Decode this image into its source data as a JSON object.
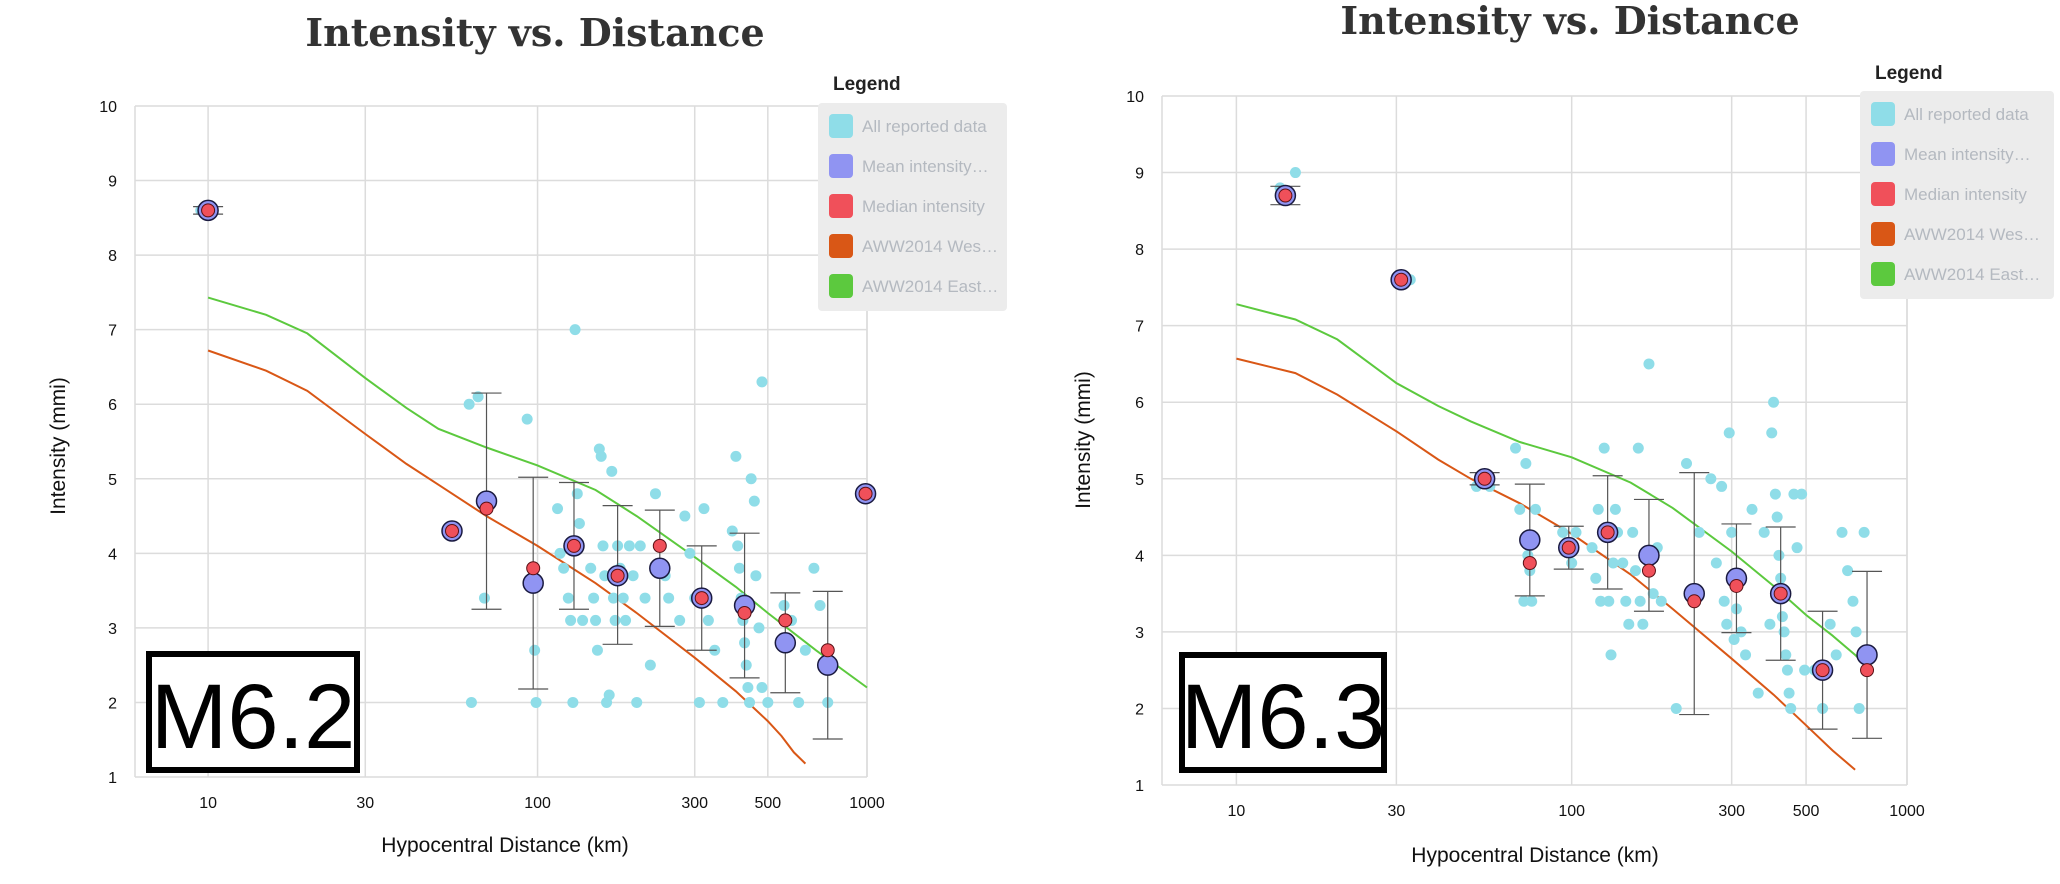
{
  "chart_data": [
    {
      "type": "scatter",
      "title": "Intensity vs. Distance",
      "xlabel": "Hypocentral Distance (km)",
      "ylabel": "Intensity (mmi)",
      "xscale": "log",
      "xlim": [
        6,
        1000
      ],
      "ylim": [
        1,
        10
      ],
      "xticks": [
        "10",
        "30",
        "100",
        "300",
        "500",
        "1000"
      ],
      "xtick_values": [
        10,
        30,
        100,
        300,
        500,
        1000
      ],
      "yticks": [
        "1",
        "2",
        "3",
        "4",
        "5",
        "6",
        "7",
        "8",
        "9",
        "10"
      ],
      "grid": true,
      "legend": {
        "title": "Legend",
        "position": "top-right",
        "items": [
          {
            "label": "All reported data",
            "color": "#8fdde8"
          },
          {
            "label": "Mean intensity…",
            "color": "#9094f2"
          },
          {
            "label": "Median intensity",
            "color": "#f0505a"
          },
          {
            "label": "AWW2014 Wes…",
            "color": "#d95716"
          },
          {
            "label": "AWW2014 East…",
            "color": "#5cc93e"
          }
        ]
      },
      "badge": "M6.2",
      "all_reported": [
        [
          9.5,
          8.6
        ],
        [
          10.3,
          8.6
        ],
        [
          62,
          6.0
        ],
        [
          66,
          6.1
        ],
        [
          69,
          3.4
        ],
        [
          63,
          2.0
        ],
        [
          93,
          5.8
        ],
        [
          98,
          2.7
        ],
        [
          99,
          2.0
        ],
        [
          115,
          4.6
        ],
        [
          117,
          4.0
        ],
        [
          120,
          3.8
        ],
        [
          124,
          3.4
        ],
        [
          126,
          3.1
        ],
        [
          128,
          2.0
        ],
        [
          130,
          7.0
        ],
        [
          132,
          4.8
        ],
        [
          134,
          4.4
        ],
        [
          137,
          3.1
        ],
        [
          145,
          3.8
        ],
        [
          148,
          3.4
        ],
        [
          150,
          3.1
        ],
        [
          152,
          2.7
        ],
        [
          154,
          5.4
        ],
        [
          156,
          5.3
        ],
        [
          158,
          4.1
        ],
        [
          160,
          3.7
        ],
        [
          162,
          2.0
        ],
        [
          165,
          2.1
        ],
        [
          168,
          5.1
        ],
        [
          170,
          3.4
        ],
        [
          172,
          3.1
        ],
        [
          175,
          4.1
        ],
        [
          178,
          3.8
        ],
        [
          182,
          3.4
        ],
        [
          185,
          3.1
        ],
        [
          190,
          4.1
        ],
        [
          195,
          3.7
        ],
        [
          200,
          2.0
        ],
        [
          205,
          4.1
        ],
        [
          212,
          3.4
        ],
        [
          220,
          2.5
        ],
        [
          228,
          4.8
        ],
        [
          236,
          4.1
        ],
        [
          244,
          3.7
        ],
        [
          250,
          3.4
        ],
        [
          270,
          3.1
        ],
        [
          280,
          4.5
        ],
        [
          290,
          4.0
        ],
        [
          300,
          3.4
        ],
        [
          310,
          2.0
        ],
        [
          320,
          4.6
        ],
        [
          330,
          3.1
        ],
        [
          345,
          2.7
        ],
        [
          365,
          2.0
        ],
        [
          390,
          4.3
        ],
        [
          400,
          5.3
        ],
        [
          405,
          4.1
        ],
        [
          410,
          3.8
        ],
        [
          415,
          3.4
        ],
        [
          420,
          3.1
        ],
        [
          425,
          2.8
        ],
        [
          430,
          2.5
        ],
        [
          435,
          2.2
        ],
        [
          440,
          2.0
        ],
        [
          445,
          5.0
        ],
        [
          455,
          4.7
        ],
        [
          460,
          3.7
        ],
        [
          470,
          3.0
        ],
        [
          480,
          2.2
        ],
        [
          480,
          6.3
        ],
        [
          500,
          2.0
        ],
        [
          560,
          3.3
        ],
        [
          590,
          3.1
        ],
        [
          620,
          2.0
        ],
        [
          650,
          2.7
        ],
        [
          690,
          3.8
        ],
        [
          720,
          3.3
        ],
        [
          760,
          2.0
        ]
      ],
      "mean": [
        {
          "x": 10,
          "y": 8.6,
          "err": [
            8.55,
            8.65
          ]
        },
        {
          "x": 55,
          "y": 4.3
        },
        {
          "x": 70,
          "y": 4.7,
          "err": [
            3.25,
            6.15
          ]
        },
        {
          "x": 97,
          "y": 3.6,
          "err": [
            2.18,
            5.02
          ]
        },
        {
          "x": 129,
          "y": 4.1,
          "err": [
            3.25,
            4.95
          ]
        },
        {
          "x": 175,
          "y": 3.7,
          "err": [
            2.78,
            4.64
          ]
        },
        {
          "x": 235,
          "y": 3.8,
          "err": [
            3.02,
            4.58
          ]
        },
        {
          "x": 315,
          "y": 3.4,
          "err": [
            2.7,
            4.1
          ]
        },
        {
          "x": 425,
          "y": 3.3,
          "err": [
            2.33,
            4.27
          ]
        },
        {
          "x": 565,
          "y": 2.8,
          "err": [
            2.13,
            3.47
          ]
        },
        {
          "x": 760,
          "y": 2.5,
          "err": [
            1.51,
            3.49
          ]
        },
        {
          "x": 990,
          "y": 4.8
        }
      ],
      "median": [
        [
          10,
          8.6
        ],
        [
          55,
          4.3
        ],
        [
          70,
          4.6
        ],
        [
          97,
          3.8
        ],
        [
          129,
          4.1
        ],
        [
          175,
          3.7
        ],
        [
          235,
          4.1
        ],
        [
          315,
          3.4
        ],
        [
          425,
          3.2
        ],
        [
          565,
          3.1
        ],
        [
          760,
          2.7
        ],
        [
          990,
          4.8
        ]
      ],
      "series": [
        {
          "name": "AWW2014 Wes…",
          "color": "#d95716",
          "x": [
            10,
            15,
            20,
            30,
            40,
            50,
            70,
            100,
            150,
            200,
            300,
            400,
            500,
            550,
            600,
            650
          ],
          "y": [
            6.72,
            6.45,
            6.18,
            5.6,
            5.2,
            4.92,
            4.5,
            4.1,
            3.6,
            3.2,
            2.6,
            2.15,
            1.75,
            1.55,
            1.33,
            1.18
          ]
        },
        {
          "name": "AWW2014 East…",
          "color": "#5cc93e",
          "x": [
            10,
            15,
            20,
            30,
            40,
            50,
            70,
            100,
            150,
            200,
            300,
            400,
            500,
            700,
            1000
          ],
          "y": [
            7.43,
            7.2,
            6.95,
            6.35,
            5.95,
            5.67,
            5.42,
            5.18,
            4.85,
            4.5,
            3.95,
            3.55,
            3.2,
            2.7,
            2.2
          ]
        }
      ]
    },
    {
      "type": "scatter",
      "title": "Intensity vs. Distance",
      "xlabel": "Hypocentral Distance (km)",
      "ylabel": "Intensity (mmi)",
      "xscale": "log",
      "xlim": [
        6,
        1000
      ],
      "ylim": [
        1,
        10
      ],
      "xticks": [
        "10",
        "30",
        "100",
        "300",
        "500",
        "1000"
      ],
      "xtick_values": [
        10,
        30,
        100,
        300,
        500,
        1000
      ],
      "yticks": [
        "1",
        "2",
        "3",
        "4",
        "5",
        "6",
        "7",
        "8",
        "9",
        "10"
      ],
      "grid": true,
      "legend": {
        "title": "Legend",
        "position": "top-right",
        "items": [
          {
            "label": "All reported data",
            "color": "#8fdde8"
          },
          {
            "label": "Mean intensity…",
            "color": "#9094f2"
          },
          {
            "label": "Median intensity",
            "color": "#f0505a"
          },
          {
            "label": "AWW2014 Wes…",
            "color": "#d95716"
          },
          {
            "label": "AWW2014 East…",
            "color": "#5cc93e"
          }
        ]
      },
      "badge": "M6.3",
      "all_reported": [
        [
          13.5,
          8.8
        ],
        [
          14.5,
          8.7
        ],
        [
          15,
          9.0
        ],
        [
          30,
          7.6
        ],
        [
          33,
          7.6
        ],
        [
          52,
          4.9
        ],
        [
          55,
          5.0
        ],
        [
          57,
          4.9
        ],
        [
          68,
          5.4
        ],
        [
          70,
          4.6
        ],
        [
          72,
          3.4
        ],
        [
          73,
          5.2
        ],
        [
          74,
          4.0
        ],
        [
          75,
          3.8
        ],
        [
          76,
          3.4
        ],
        [
          78,
          4.6
        ],
        [
          94,
          4.3
        ],
        [
          97,
          4.1
        ],
        [
          100,
          3.9
        ],
        [
          103,
          4.3
        ],
        [
          115,
          4.1
        ],
        [
          118,
          3.7
        ],
        [
          120,
          4.6
        ],
        [
          122,
          3.4
        ],
        [
          125,
          5.4
        ],
        [
          127,
          4.3
        ],
        [
          129,
          3.4
        ],
        [
          131,
          2.7
        ],
        [
          133,
          3.9
        ],
        [
          135,
          4.6
        ],
        [
          137,
          4.3
        ],
        [
          142,
          3.9
        ],
        [
          145,
          3.4
        ],
        [
          148,
          3.1
        ],
        [
          152,
          4.3
        ],
        [
          155,
          3.8
        ],
        [
          158,
          5.4
        ],
        [
          160,
          3.4
        ],
        [
          163,
          3.1
        ],
        [
          166,
          4.0
        ],
        [
          170,
          6.5
        ],
        [
          175,
          3.5
        ],
        [
          180,
          4.1
        ],
        [
          185,
          3.4
        ],
        [
          205,
          2.0
        ],
        [
          220,
          5.2
        ],
        [
          240,
          4.3
        ],
        [
          260,
          5.0
        ],
        [
          270,
          3.9
        ],
        [
          280,
          4.9
        ],
        [
          285,
          3.4
        ],
        [
          290,
          3.1
        ],
        [
          295,
          5.6
        ],
        [
          300,
          4.3
        ],
        [
          305,
          2.9
        ],
        [
          310,
          3.3
        ],
        [
          320,
          3.0
        ],
        [
          330,
          2.7
        ],
        [
          345,
          4.6
        ],
        [
          360,
          2.2
        ],
        [
          375,
          4.3
        ],
        [
          390,
          3.1
        ],
        [
          395,
          5.6
        ],
        [
          400,
          6.0
        ],
        [
          405,
          4.8
        ],
        [
          410,
          4.5
        ],
        [
          415,
          4.0
        ],
        [
          420,
          3.7
        ],
        [
          425,
          3.2
        ],
        [
          430,
          3.0
        ],
        [
          435,
          2.7
        ],
        [
          440,
          2.5
        ],
        [
          445,
          2.2
        ],
        [
          450,
          2.0
        ],
        [
          460,
          4.8
        ],
        [
          470,
          4.1
        ],
        [
          485,
          4.8
        ],
        [
          495,
          2.5
        ],
        [
          530,
          2.5
        ],
        [
          560,
          2.0
        ],
        [
          590,
          3.1
        ],
        [
          615,
          2.7
        ],
        [
          640,
          4.3
        ],
        [
          665,
          3.8
        ],
        [
          690,
          3.4
        ],
        [
          705,
          3.0
        ],
        [
          720,
          2.0
        ],
        [
          745,
          4.3
        ],
        [
          760,
          2.5
        ]
      ],
      "mean": [
        {
          "x": 14,
          "y": 8.7,
          "err": [
            8.58,
            8.82
          ]
        },
        {
          "x": 31,
          "y": 7.6
        },
        {
          "x": 55,
          "y": 5.0,
          "err": [
            4.92,
            5.08
          ]
        },
        {
          "x": 75,
          "y": 4.2,
          "err": [
            3.47,
            4.93
          ]
        },
        {
          "x": 98,
          "y": 4.1,
          "err": [
            3.82,
            4.38
          ]
        },
        {
          "x": 128,
          "y": 4.3,
          "err": [
            3.56,
            5.04
          ]
        },
        {
          "x": 170,
          "y": 4.0,
          "err": [
            3.27,
            4.73
          ]
        },
        {
          "x": 232,
          "y": 3.5,
          "err": [
            1.92,
            5.08
          ]
        },
        {
          "x": 310,
          "y": 3.7,
          "err": [
            2.99,
            4.41
          ]
        },
        {
          "x": 420,
          "y": 3.5,
          "err": [
            2.63,
            4.37
          ]
        },
        {
          "x": 560,
          "y": 2.5,
          "err": [
            1.73,
            3.27
          ]
        },
        {
          "x": 760,
          "y": 2.7,
          "err": [
            1.61,
            3.79
          ]
        }
      ],
      "median": [
        [
          14,
          8.7
        ],
        [
          31,
          7.6
        ],
        [
          55,
          5.0
        ],
        [
          75,
          3.9
        ],
        [
          98,
          4.1
        ],
        [
          128,
          4.3
        ],
        [
          170,
          3.8
        ],
        [
          232,
          3.4
        ],
        [
          310,
          3.6
        ],
        [
          420,
          3.5
        ],
        [
          560,
          2.5
        ],
        [
          760,
          2.5
        ]
      ],
      "series": [
        {
          "name": "AWW2014 Wes…",
          "color": "#d95716",
          "x": [
            10,
            15,
            20,
            30,
            40,
            50,
            70,
            100,
            150,
            200,
            300,
            400,
            500,
            600,
            700
          ],
          "y": [
            6.57,
            6.38,
            6.1,
            5.62,
            5.25,
            5.0,
            4.68,
            4.28,
            3.75,
            3.3,
            2.65,
            2.18,
            1.78,
            1.45,
            1.2
          ]
        },
        {
          "name": "AWW2014 East…",
          "color": "#5cc93e",
          "x": [
            10,
            15,
            20,
            30,
            40,
            50,
            70,
            100,
            150,
            200,
            300,
            400,
            500,
            600,
            700,
            760
          ],
          "y": [
            7.28,
            7.08,
            6.82,
            6.25,
            5.95,
            5.75,
            5.48,
            5.28,
            4.95,
            4.62,
            4.05,
            3.6,
            3.22,
            2.95,
            2.7,
            2.55
          ]
        }
      ]
    }
  ]
}
